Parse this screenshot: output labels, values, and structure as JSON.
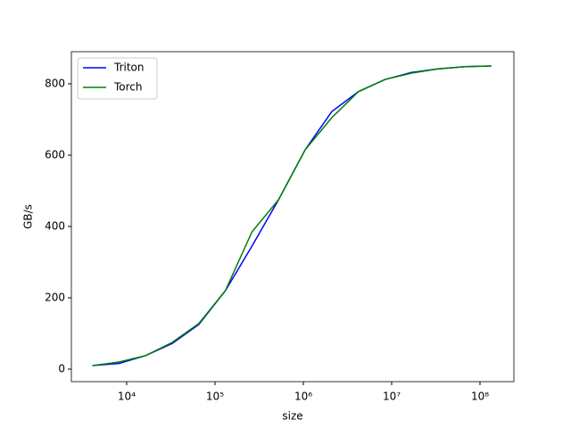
{
  "chart_data": {
    "type": "line",
    "xlabel": "size",
    "ylabel": "GB/s",
    "x": [
      4096,
      8192,
      16384,
      32768,
      65536,
      131072,
      262144,
      524288,
      1048576,
      2097152,
      4194304,
      8388608,
      16777216,
      33554432,
      67108864,
      134217728
    ],
    "series": [
      {
        "name": "Triton",
        "color": "#0000ff",
        "values": [
          10,
          16,
          38,
          72,
          125,
          220,
          345,
          475,
          615,
          722,
          778,
          812,
          832,
          842,
          848,
          850
        ]
      },
      {
        "name": "Torch",
        "color": "#008000",
        "values": [
          10,
          20,
          38,
          75,
          128,
          220,
          385,
          475,
          615,
          705,
          778,
          812,
          830,
          842,
          848,
          850
        ]
      }
    ],
    "xscale": "log",
    "xlim": [
      2366,
      242000000
    ],
    "xticks": [
      {
        "value": 10000,
        "label": "10⁴"
      },
      {
        "value": 100000,
        "label": "10⁵"
      },
      {
        "value": 1000000,
        "label": "10⁶"
      },
      {
        "value": 10000000,
        "label": "10⁷"
      },
      {
        "value": 100000000,
        "label": "10⁸"
      }
    ],
    "ylim": [
      -35,
      890
    ],
    "yticks": [
      0,
      200,
      400,
      600,
      800
    ],
    "legend": "upper left"
  }
}
